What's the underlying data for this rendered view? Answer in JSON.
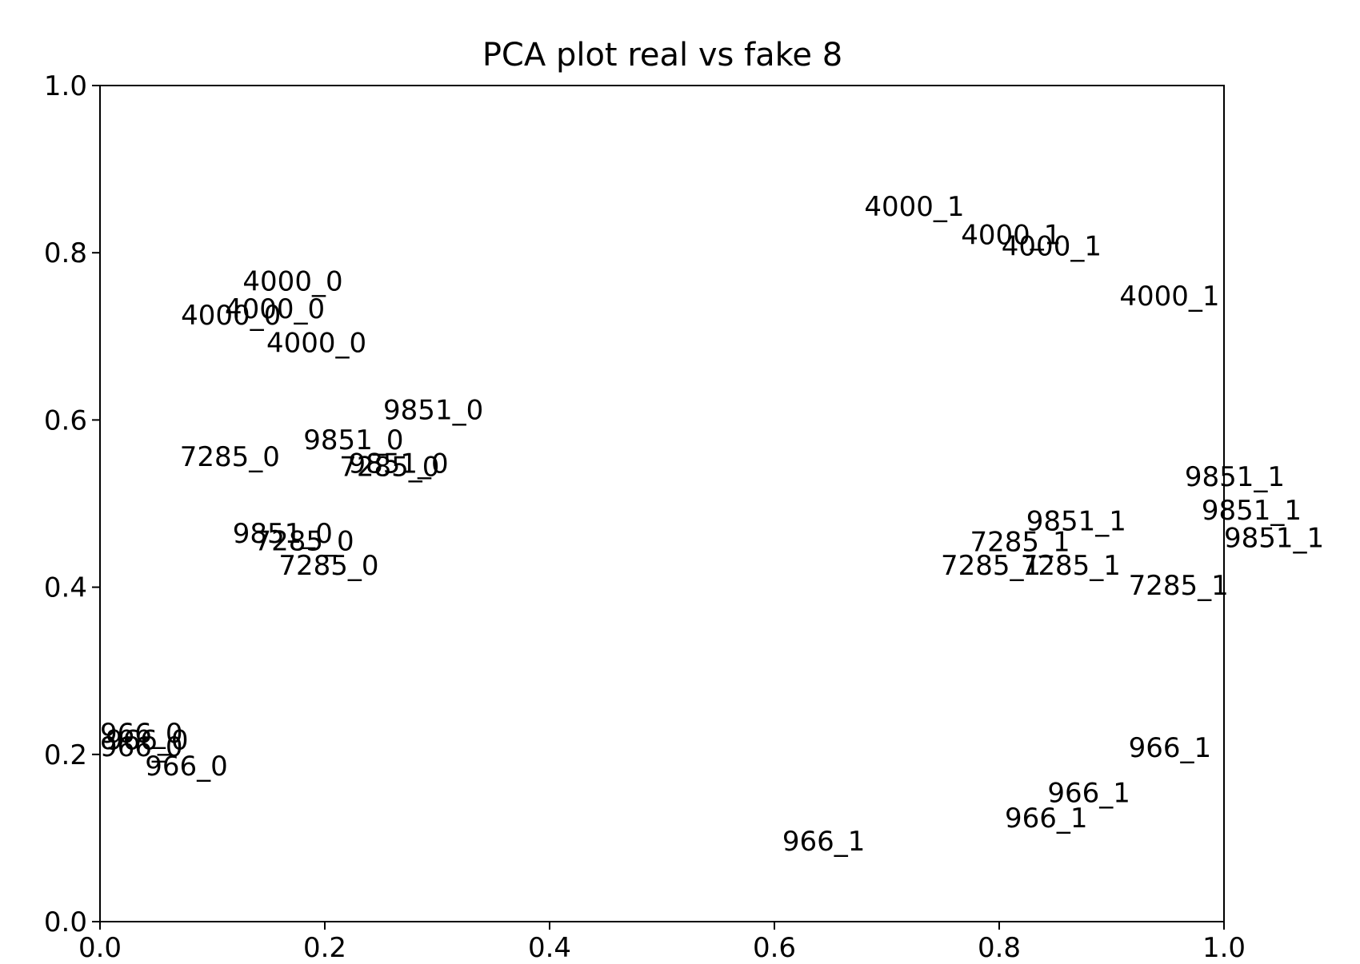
{
  "chart_data": {
    "type": "scatter",
    "title": "PCA plot real vs fake 8",
    "xlabel": "",
    "ylabel": "",
    "xlim": [
      0.0,
      1.0
    ],
    "ylim": [
      0.0,
      1.0
    ],
    "x_ticks": [
      "0.0",
      "0.2",
      "0.4",
      "0.6",
      "0.8",
      "1.0"
    ],
    "y_ticks": [
      "0.0",
      "0.2",
      "0.4",
      "0.6",
      "0.8",
      "1.0"
    ],
    "grid": false,
    "legend": "none",
    "markers": "text labels only (no point markers)",
    "points": [
      {
        "label": "4000_1",
        "x": 0.68,
        "y": 0.844
      },
      {
        "label": "4000_1",
        "x": 0.766,
        "y": 0.81
      },
      {
        "label": "4000_1",
        "x": 0.802,
        "y": 0.797
      },
      {
        "label": "4000_1",
        "x": 0.907,
        "y": 0.737
      },
      {
        "label": "4000_0",
        "x": 0.127,
        "y": 0.755
      },
      {
        "label": "4000_0",
        "x": 0.111,
        "y": 0.722
      },
      {
        "label": "4000_0",
        "x": 0.072,
        "y": 0.714
      },
      {
        "label": "4000_0",
        "x": 0.148,
        "y": 0.681
      },
      {
        "label": "9851_0",
        "x": 0.252,
        "y": 0.601
      },
      {
        "label": "9851_0",
        "x": 0.181,
        "y": 0.565
      },
      {
        "label": "9851_0",
        "x": 0.221,
        "y": 0.537
      },
      {
        "label": "7285_0",
        "x": 0.071,
        "y": 0.545
      },
      {
        "label": "7285_0",
        "x": 0.213,
        "y": 0.533
      },
      {
        "label": "9851_0",
        "x": 0.118,
        "y": 0.453
      },
      {
        "label": "7285_0",
        "x": 0.137,
        "y": 0.444
      },
      {
        "label": "7285_0",
        "x": 0.159,
        "y": 0.415
      },
      {
        "label": "9851_1",
        "x": 0.965,
        "y": 0.521
      },
      {
        "label": "9851_1",
        "x": 0.98,
        "y": 0.481
      },
      {
        "label": "9851_1",
        "x": 1.0,
        "y": 0.448
      },
      {
        "label": "9851_1",
        "x": 0.824,
        "y": 0.468
      },
      {
        "label": "7285_1",
        "x": 0.774,
        "y": 0.443
      },
      {
        "label": "7285_1",
        "x": 0.819,
        "y": 0.415
      },
      {
        "label": "7285_1",
        "x": 0.748,
        "y": 0.415
      },
      {
        "label": "7285_1",
        "x": 0.915,
        "y": 0.391
      },
      {
        "label": "966_1",
        "x": 0.915,
        "y": 0.197
      },
      {
        "label": "966_1",
        "x": 0.843,
        "y": 0.143
      },
      {
        "label": "966_1",
        "x": 0.805,
        "y": 0.113
      },
      {
        "label": "966_1",
        "x": 0.607,
        "y": 0.085
      },
      {
        "label": "966_0",
        "x": 0.0,
        "y": 0.214
      },
      {
        "label": "966_0",
        "x": 0.005,
        "y": 0.206
      },
      {
        "label": "966_0",
        "x": 0.0,
        "y": 0.198
      },
      {
        "label": "966_0",
        "x": 0.04,
        "y": 0.175
      }
    ]
  }
}
